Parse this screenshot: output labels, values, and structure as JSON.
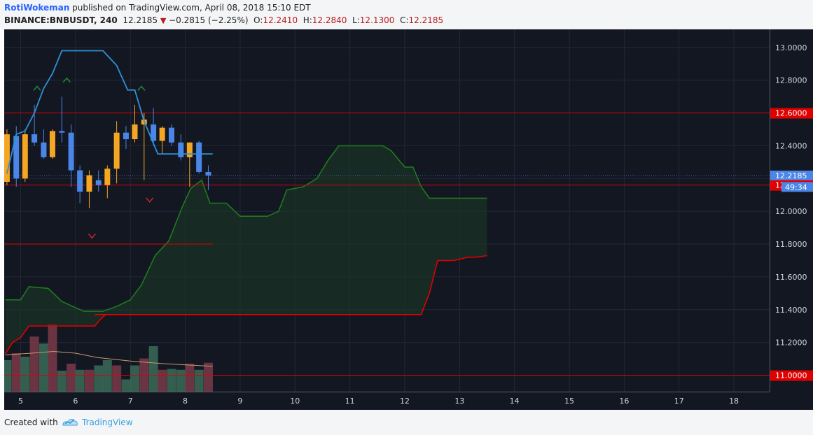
{
  "header": {
    "author": "RotiWokeman",
    "published": "published on TradingView.com, April 08, 2018 15:10 EDT",
    "symbol": "BINANCE:BNBUSDT, 240",
    "last": "12.2185",
    "change": "−0.2815 (−2.25%)",
    "o_label": "O:",
    "o": "12.2410",
    "h_label": "H:",
    "h": "12.2840",
    "l_label": "L:",
    "l": "12.1300",
    "c_label": "C:",
    "c": "12.2185"
  },
  "footer": {
    "created_with": "Created with",
    "brand": "TradingView"
  },
  "colors": {
    "background": "#131722",
    "up_candle": "#f5a623",
    "down_candle": "#4a86e8",
    "red_line": "#e00000",
    "cloud_line": "#1f7a1f",
    "cloud_fill": "#1b3a24",
    "blue_band": "#2f8fd8"
  },
  "chart_data": {
    "type": "candlestick",
    "symbol": "BINANCE:BNBUSDT",
    "interval": "240",
    "x_tick_labels": [
      "5",
      "6",
      "7",
      "8",
      "9",
      "10",
      "11",
      "12",
      "13",
      "14",
      "15",
      "16",
      "17",
      "18"
    ],
    "x_tick_values": [
      5,
      6,
      7,
      8,
      9,
      10,
      11,
      12,
      13,
      14,
      15,
      16,
      17,
      18
    ],
    "xlim": [
      4.7,
      18.65
    ],
    "y_tick_labels": [
      "13.0000",
      "12.8000",
      "12.6000",
      "12.4000",
      "12.2000",
      "12.0000",
      "11.8000",
      "11.6000",
      "11.4000",
      "11.2000",
      "11.0000"
    ],
    "y_tick_values": [
      13.0,
      12.8,
      12.6,
      12.4,
      12.2,
      12.0,
      11.8,
      11.6,
      11.4,
      11.2,
      11.0
    ],
    "ylim": [
      10.9,
      13.11
    ],
    "grid": true,
    "price_labels": [
      {
        "value": 12.6,
        "text": "12.6000",
        "color": "#e00000"
      },
      {
        "value": 12.2185,
        "text": "12.2185",
        "color": "#4a86e8"
      },
      {
        "value": 12.1601,
        "text": "12.1601",
        "color": "#e00000"
      },
      {
        "value": 11.0,
        "text": "11.0000",
        "color": "#e00000"
      }
    ],
    "countdown": "49:34",
    "countdown_value": 12.17,
    "horizontal_lines": [
      {
        "y": 12.6,
        "x_start": 4.7,
        "x_end": 18.65
      },
      {
        "y": 12.1601,
        "x_start": 4.7,
        "x_end": 18.65
      },
      {
        "y": 11.0,
        "x_start": 4.7,
        "x_end": 18.65
      },
      {
        "y": 11.8,
        "x_start": 4.7,
        "x_end": 8.5
      }
    ],
    "candles": [
      {
        "x": 4.75,
        "open": 12.18,
        "high": 12.5,
        "low": 12.16,
        "close": 12.47
      },
      {
        "x": 4.92,
        "open": 12.46,
        "high": 12.52,
        "low": 12.15,
        "close": 12.2
      },
      {
        "x": 5.08,
        "open": 12.2,
        "high": 12.5,
        "low": 12.18,
        "close": 12.47
      },
      {
        "x": 5.25,
        "open": 12.47,
        "high": 12.65,
        "low": 12.4,
        "close": 12.42
      },
      {
        "x": 5.42,
        "open": 12.42,
        "high": 12.5,
        "low": 12.32,
        "close": 12.33
      },
      {
        "x": 5.58,
        "open": 12.33,
        "high": 12.5,
        "low": 12.32,
        "close": 12.49
      },
      {
        "x": 5.75,
        "open": 12.49,
        "high": 12.7,
        "low": 12.42,
        "close": 12.48
      },
      {
        "x": 5.92,
        "open": 12.48,
        "high": 12.53,
        "low": 12.15,
        "close": 12.25
      },
      {
        "x": 6.08,
        "open": 12.25,
        "high": 12.28,
        "low": 12.05,
        "close": 12.12
      },
      {
        "x": 6.25,
        "open": 12.12,
        "high": 12.25,
        "low": 12.02,
        "close": 12.22
      },
      {
        "x": 6.42,
        "open": 12.19,
        "high": 12.25,
        "low": 12.12,
        "close": 12.16
      },
      {
        "x": 6.58,
        "open": 12.16,
        "high": 12.28,
        "low": 12.08,
        "close": 12.26
      },
      {
        "x": 6.75,
        "open": 12.26,
        "high": 12.55,
        "low": 12.17,
        "close": 12.48
      },
      {
        "x": 6.92,
        "open": 12.48,
        "high": 12.52,
        "low": 12.38,
        "close": 12.44
      },
      {
        "x": 7.08,
        "open": 12.44,
        "high": 12.65,
        "low": 12.42,
        "close": 12.53
      },
      {
        "x": 7.25,
        "open": 12.53,
        "high": 12.6,
        "low": 12.19,
        "close": 12.56
      },
      {
        "x": 7.42,
        "open": 12.53,
        "high": 12.63,
        "low": 12.4,
        "close": 12.43
      },
      {
        "x": 7.58,
        "open": 12.43,
        "high": 12.52,
        "low": 12.35,
        "close": 12.51
      },
      {
        "x": 7.75,
        "open": 12.51,
        "high": 12.53,
        "low": 12.4,
        "close": 12.42
      },
      {
        "x": 7.92,
        "open": 12.42,
        "high": 12.47,
        "low": 12.31,
        "close": 12.33
      },
      {
        "x": 8.08,
        "open": 12.33,
        "high": 12.42,
        "low": 12.15,
        "close": 12.42
      },
      {
        "x": 8.25,
        "open": 12.42,
        "high": 12.43,
        "low": 12.23,
        "close": 12.24
      },
      {
        "x": 8.42,
        "open": 12.24,
        "high": 12.28,
        "low": 12.13,
        "close": 12.2185
      }
    ],
    "blue_band": [
      {
        "x": 4.75,
        "y": 12.23
      },
      {
        "x": 4.92,
        "y": 12.47
      },
      {
        "x": 5.08,
        "y": 12.49
      },
      {
        "x": 5.25,
        "y": 12.6
      },
      {
        "x": 5.42,
        "y": 12.75
      },
      {
        "x": 5.58,
        "y": 12.84
      },
      {
        "x": 5.75,
        "y": 12.98
      },
      {
        "x": 6.5,
        "y": 12.98
      },
      {
        "x": 6.75,
        "y": 12.89
      },
      {
        "x": 6.95,
        "y": 12.74
      },
      {
        "x": 7.08,
        "y": 12.74
      },
      {
        "x": 7.25,
        "y": 12.55
      },
      {
        "x": 7.5,
        "y": 12.35
      },
      {
        "x": 8.0,
        "y": 12.35
      },
      {
        "x": 8.5,
        "y": 12.35
      }
    ],
    "cloud_span_a": [
      {
        "x": 4.72,
        "y": 11.46
      },
      {
        "x": 5.0,
        "y": 11.46
      },
      {
        "x": 5.15,
        "y": 11.54
      },
      {
        "x": 5.5,
        "y": 11.53
      },
      {
        "x": 5.75,
        "y": 11.45
      },
      {
        "x": 6.15,
        "y": 11.39
      },
      {
        "x": 6.5,
        "y": 11.39
      },
      {
        "x": 6.75,
        "y": 11.42
      },
      {
        "x": 7.0,
        "y": 11.46
      },
      {
        "x": 7.2,
        "y": 11.55
      },
      {
        "x": 7.45,
        "y": 11.73
      },
      {
        "x": 7.7,
        "y": 11.82
      },
      {
        "x": 7.95,
        "y": 12.03
      },
      {
        "x": 8.1,
        "y": 12.14
      },
      {
        "x": 8.3,
        "y": 12.19
      },
      {
        "x": 8.45,
        "y": 12.05
      },
      {
        "x": 8.75,
        "y": 12.05
      },
      {
        "x": 9.0,
        "y": 11.97
      },
      {
        "x": 9.5,
        "y": 11.97
      },
      {
        "x": 9.7,
        "y": 12.0
      },
      {
        "x": 9.85,
        "y": 12.13
      },
      {
        "x": 10.15,
        "y": 12.15
      },
      {
        "x": 10.4,
        "y": 12.2
      },
      {
        "x": 10.6,
        "y": 12.31
      },
      {
        "x": 10.8,
        "y": 12.4
      },
      {
        "x": 11.6,
        "y": 12.4
      },
      {
        "x": 11.75,
        "y": 12.37
      },
      {
        "x": 12.0,
        "y": 12.27
      },
      {
        "x": 12.15,
        "y": 12.27
      },
      {
        "x": 12.3,
        "y": 12.15
      },
      {
        "x": 12.45,
        "y": 12.08
      },
      {
        "x": 12.75,
        "y": 12.08
      },
      {
        "x": 13.5,
        "y": 12.08
      }
    ],
    "cloud_span_b": [
      {
        "x": 6.35,
        "y": 11.37
      },
      {
        "x": 12.3,
        "y": 11.37
      },
      {
        "x": 12.45,
        "y": 11.5
      },
      {
        "x": 12.6,
        "y": 11.7
      },
      {
        "x": 12.9,
        "y": 11.7
      },
      {
        "x": 13.15,
        "y": 11.72
      },
      {
        "x": 13.3,
        "y": 11.72
      },
      {
        "x": 13.5,
        "y": 11.73
      }
    ],
    "red_step": [
      {
        "x": 4.72,
        "y": 11.13
      },
      {
        "x": 4.85,
        "y": 11.2
      },
      {
        "x": 5.0,
        "y": 11.23
      },
      {
        "x": 5.15,
        "y": 11.3
      },
      {
        "x": 6.35,
        "y": 11.3
      },
      {
        "x": 6.45,
        "y": 11.34
      },
      {
        "x": 6.55,
        "y": 11.37
      },
      {
        "x": 12.3,
        "y": 11.37
      }
    ],
    "markers": [
      {
        "type": "up",
        "x": 5.3,
        "y": 12.75
      },
      {
        "type": "up",
        "x": 5.84,
        "y": 12.8
      },
      {
        "type": "up",
        "x": 7.2,
        "y": 12.75
      },
      {
        "type": "down",
        "x": 7.35,
        "y": 12.07
      },
      {
        "type": "down",
        "x": 6.3,
        "y": 11.85
      }
    ],
    "volume_bars": [
      {
        "x": 4.75,
        "v": 0.36,
        "dir": "up"
      },
      {
        "x": 4.92,
        "v": 0.44,
        "dir": "down"
      },
      {
        "x": 5.08,
        "v": 0.4,
        "dir": "up"
      },
      {
        "x": 5.25,
        "v": 0.63,
        "dir": "down"
      },
      {
        "x": 5.42,
        "v": 0.55,
        "dir": "up"
      },
      {
        "x": 5.58,
        "v": 0.77,
        "dir": "down"
      },
      {
        "x": 5.75,
        "v": 0.24,
        "dir": "up"
      },
      {
        "x": 5.92,
        "v": 0.32,
        "dir": "down"
      },
      {
        "x": 6.08,
        "v": 0.25,
        "dir": "up"
      },
      {
        "x": 6.25,
        "v": 0.25,
        "dir": "down"
      },
      {
        "x": 6.42,
        "v": 0.3,
        "dir": "up"
      },
      {
        "x": 6.58,
        "v": 0.36,
        "dir": "up"
      },
      {
        "x": 6.75,
        "v": 0.3,
        "dir": "down"
      },
      {
        "x": 6.92,
        "v": 0.14,
        "dir": "up"
      },
      {
        "x": 7.08,
        "v": 0.3,
        "dir": "up"
      },
      {
        "x": 7.25,
        "v": 0.38,
        "dir": "down"
      },
      {
        "x": 7.42,
        "v": 0.52,
        "dir": "up"
      },
      {
        "x": 7.58,
        "v": 0.25,
        "dir": "down"
      },
      {
        "x": 7.75,
        "v": 0.26,
        "dir": "up"
      },
      {
        "x": 7.92,
        "v": 0.25,
        "dir": "up"
      },
      {
        "x": 8.08,
        "v": 0.32,
        "dir": "down"
      },
      {
        "x": 8.25,
        "v": 0.25,
        "dir": "up"
      },
      {
        "x": 8.42,
        "v": 0.33,
        "dir": "down"
      }
    ],
    "volume_ma": [
      {
        "x": 4.72,
        "v": 0.42
      },
      {
        "x": 5.2,
        "v": 0.44
      },
      {
        "x": 5.6,
        "v": 0.46
      },
      {
        "x": 6.0,
        "v": 0.44
      },
      {
        "x": 6.4,
        "v": 0.39
      },
      {
        "x": 7.0,
        "v": 0.35
      },
      {
        "x": 7.6,
        "v": 0.32
      },
      {
        "x": 8.5,
        "v": 0.29
      }
    ]
  }
}
